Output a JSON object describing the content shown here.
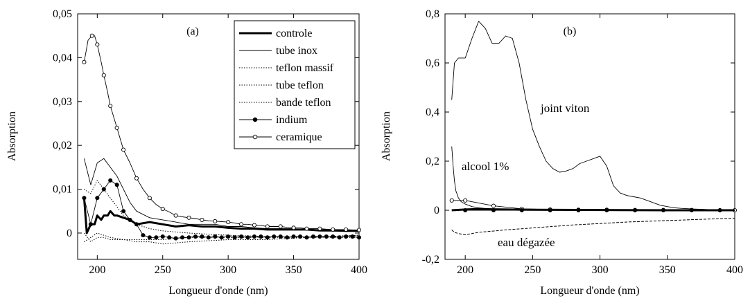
{
  "chart_data": [
    {
      "type": "line",
      "panel_label": "(a)",
      "xlabel": "Longueur d'onde (nm)",
      "ylabel": "Absorption",
      "xlim": [
        185,
        400
      ],
      "ylim": [
        -0.006,
        0.05
      ],
      "xticks": [
        200,
        250,
        300,
        350,
        400
      ],
      "xtick_labels": [
        "200",
        "250",
        "300",
        "350",
        "400"
      ],
      "yticks": [
        0,
        0.01,
        0.02,
        0.03,
        0.04,
        0.05
      ],
      "ytick_labels": [
        "0",
        "0,01",
        "0,02",
        "0,03",
        "0,04",
        "0,05"
      ],
      "legend_position": "top-right",
      "series": [
        {
          "name": "controle",
          "style": "thick",
          "x": [
            190,
            192,
            195,
            198,
            200,
            203,
            205,
            208,
            210,
            213,
            215,
            220,
            225,
            230,
            240,
            250,
            260,
            270,
            280,
            290,
            300,
            310,
            320,
            330,
            340,
            350,
            360,
            370,
            380,
            390,
            400
          ],
          "y": [
            0.008,
            0.0,
            0.002,
            0.002,
            0.004,
            0.003,
            0.004,
            0.004,
            0.005,
            0.004,
            0.004,
            0.0035,
            0.003,
            0.002,
            0.0025,
            0.002,
            0.0015,
            0.0018,
            0.0015,
            0.0015,
            0.0012,
            0.001,
            0.001,
            0.0008,
            0.0008,
            0.0008,
            0.0008,
            0.0006,
            0.0006,
            0.0005,
            0.0005
          ]
        },
        {
          "name": "tube inox",
          "style": "thin",
          "x": [
            190,
            195,
            200,
            205,
            210,
            215,
            220,
            225,
            230,
            240,
            250,
            260,
            270,
            280,
            290,
            300,
            310,
            320,
            330,
            340,
            350,
            360,
            370,
            380,
            390,
            400
          ],
          "y": [
            0.017,
            0.011,
            0.016,
            0.017,
            0.015,
            0.013,
            0.01,
            0.007,
            0.005,
            0.0035,
            0.003,
            0.0025,
            0.002,
            0.002,
            0.002,
            0.0015,
            0.0015,
            0.0012,
            0.001,
            0.001,
            0.001,
            0.0008,
            0.0008,
            0.0008,
            0.0007,
            0.0007
          ]
        },
        {
          "name": "teflon massif",
          "style": "dotted",
          "x": [
            190,
            195,
            200,
            205,
            210,
            220,
            230,
            240,
            250,
            270,
            300,
            330,
            360,
            400
          ],
          "y": [
            0.01,
            0.009,
            0.012,
            0.01,
            0.008,
            0.004,
            0.002,
            0.001,
            0.0005,
            0.0,
            -0.0005,
            -0.0008,
            -0.001,
            -0.001
          ]
        },
        {
          "name": "tube teflon",
          "style": "dotted",
          "x": [
            190,
            195,
            200,
            205,
            210,
            220,
            230,
            240,
            250,
            270,
            300,
            330,
            360,
            400
          ],
          "y": [
            0.0,
            -0.002,
            -0.001,
            -0.001,
            -0.0015,
            -0.0015,
            -0.0015,
            -0.0015,
            -0.0015,
            -0.001,
            -0.001,
            -0.001,
            -0.001,
            -0.0005
          ]
        },
        {
          "name": "bande teflon",
          "style": "dotted",
          "x": [
            190,
            195,
            200,
            205,
            210,
            220,
            230,
            240,
            250,
            270,
            300,
            330,
            360,
            400
          ],
          "y": [
            -0.002,
            -0.001,
            0.0,
            -0.0005,
            -0.001,
            -0.0015,
            -0.002,
            -0.002,
            -0.0025,
            -0.002,
            -0.0015,
            -0.0015,
            -0.001,
            -0.0005
          ]
        },
        {
          "name": "indium",
          "style": "filled-markers",
          "x": [
            190,
            195,
            200,
            205,
            210,
            215,
            220,
            225,
            230,
            235,
            240,
            245,
            250,
            255,
            260,
            265,
            270,
            275,
            280,
            285,
            290,
            295,
            300,
            305,
            310,
            315,
            320,
            325,
            330,
            335,
            340,
            345,
            350,
            355,
            360,
            365,
            370,
            375,
            380,
            385,
            390,
            395,
            400
          ],
          "y": [
            0.008,
            0.002,
            0.008,
            0.01,
            0.012,
            0.011,
            0.005,
            0.003,
            0.002,
            -0.0005,
            -0.001,
            -0.001,
            -0.0008,
            -0.001,
            -0.0012,
            -0.001,
            -0.001,
            -0.0008,
            -0.0008,
            -0.001,
            -0.0008,
            -0.001,
            -0.0008,
            -0.001,
            -0.0008,
            -0.001,
            -0.0008,
            -0.0008,
            -0.001,
            -0.0008,
            -0.0008,
            -0.001,
            -0.0008,
            -0.0008,
            -0.001,
            -0.0008,
            -0.0008,
            -0.0008,
            -0.0008,
            -0.001,
            -0.0008,
            -0.0008,
            -0.001
          ]
        },
        {
          "name": "ceramique",
          "style": "open-markers",
          "x": [
            190,
            193,
            196,
            198,
            200,
            203,
            205,
            208,
            210,
            213,
            215,
            218,
            220,
            225,
            230,
            235,
            240,
            245,
            250,
            255,
            260,
            265,
            270,
            275,
            280,
            285,
            290,
            295,
            300,
            305,
            310,
            315,
            320,
            325,
            330,
            335,
            340,
            345,
            350,
            355,
            360,
            365,
            370,
            375,
            380,
            385,
            390,
            395,
            400
          ],
          "y": [
            0.039,
            0.044,
            0.045,
            0.045,
            0.043,
            0.039,
            0.036,
            0.032,
            0.029,
            0.026,
            0.024,
            0.021,
            0.019,
            0.016,
            0.0125,
            0.01,
            0.008,
            0.0065,
            0.0055,
            0.0048,
            0.004,
            0.0037,
            0.0035,
            0.0033,
            0.003,
            0.0028,
            0.0027,
            0.0026,
            0.0025,
            0.0023,
            0.002,
            0.002,
            0.0018,
            0.0017,
            0.0015,
            0.0015,
            0.0015,
            0.0013,
            0.0012,
            0.0012,
            0.001,
            0.001,
            0.001,
            0.0009,
            0.0008,
            0.0008,
            0.0008,
            0.0007,
            0.0007
          ]
        }
      ]
    },
    {
      "type": "line",
      "panel_label": "(b)",
      "xlabel": "Longueur d'onde (nm)",
      "ylabel": "Absorption",
      "xlim": [
        185,
        400
      ],
      "ylim": [
        -0.2,
        0.8
      ],
      "xticks": [
        200,
        250,
        300,
        350,
        400
      ],
      "xtick_labels": [
        "200",
        "250",
        "300",
        "350",
        "400"
      ],
      "yticks": [
        -0.2,
        0,
        0.2,
        0.4,
        0.6,
        0.8
      ],
      "ytick_labels": [
        "-0,2",
        "0",
        "0,2",
        "0,4",
        "0,6",
        "0,8"
      ],
      "annotations": [
        "joint viton",
        "alcool 1%",
        "eau dégazée"
      ],
      "series": [
        {
          "label": "joint viton",
          "style": "thin",
          "x": [
            190,
            192,
            195,
            200,
            205,
            210,
            215,
            220,
            225,
            230,
            235,
            240,
            245,
            250,
            255,
            260,
            265,
            270,
            275,
            280,
            285,
            290,
            295,
            300,
            305,
            310,
            315,
            320,
            325,
            330,
            335,
            340,
            345,
            350,
            355,
            360,
            370,
            380,
            390,
            400
          ],
          "y": [
            0.45,
            0.6,
            0.62,
            0.62,
            0.7,
            0.77,
            0.74,
            0.68,
            0.68,
            0.71,
            0.7,
            0.6,
            0.45,
            0.33,
            0.26,
            0.2,
            0.17,
            0.155,
            0.16,
            0.17,
            0.19,
            0.2,
            0.21,
            0.22,
            0.18,
            0.1,
            0.07,
            0.06,
            0.055,
            0.05,
            0.04,
            0.03,
            0.02,
            0.015,
            0.01,
            0.008,
            0.005,
            0.003,
            0.002,
            0.002
          ]
        },
        {
          "label": "alcool 1%",
          "style": "thin",
          "x": [
            190,
            191,
            192,
            193,
            195,
            197,
            200,
            205,
            210,
            215,
            220,
            230,
            240,
            260,
            300,
            350,
            400
          ],
          "y": [
            0.26,
            0.18,
            0.12,
            0.08,
            0.05,
            0.035,
            0.025,
            0.015,
            0.01,
            0.007,
            0.005,
            0.003,
            0.002,
            0.001,
            0.0,
            0.0,
            0.0
          ]
        },
        {
          "label": "ceramique",
          "style": "open-markers",
          "x": [
            190,
            200,
            221,
            242,
            263,
            284,
            305,
            326,
            347,
            368,
            389,
            400
          ],
          "y": [
            0.04,
            0.04,
            0.018,
            0.006,
            0.003,
            0.002,
            0.002,
            0.001,
            0.001,
            0.001,
            0.0,
            0.0
          ]
        },
        {
          "label": "controle",
          "style": "thick",
          "x": [
            190,
            200,
            210,
            220,
            230,
            250,
            300,
            350,
            400
          ],
          "y": [
            0.0,
            0.003,
            0.005,
            0.004,
            0.003,
            0.002,
            0.001,
            0.0,
            0.0
          ]
        },
        {
          "label": "indium",
          "style": "filled-markers",
          "x": [
            200,
            221,
            242,
            263,
            284,
            305,
            326,
            347,
            368,
            389
          ],
          "y": [
            0.0,
            0.0,
            0.0,
            0.0,
            0.0,
            0.0,
            0.0,
            0.0,
            0.0,
            0.0
          ]
        },
        {
          "label": "eau dégazée",
          "style": "dashed",
          "x": [
            190,
            192,
            195,
            200,
            205,
            210,
            220,
            230,
            240,
            250,
            260,
            270,
            280,
            290,
            300,
            310,
            320,
            330,
            340,
            350,
            360,
            370,
            380,
            390,
            400
          ],
          "y": [
            -0.08,
            -0.09,
            -0.095,
            -0.1,
            -0.095,
            -0.09,
            -0.085,
            -0.08,
            -0.076,
            -0.072,
            -0.068,
            -0.064,
            -0.06,
            -0.057,
            -0.054,
            -0.051,
            -0.048,
            -0.046,
            -0.044,
            -0.042,
            -0.04,
            -0.038,
            -0.036,
            -0.034,
            -0.032
          ]
        }
      ]
    }
  ]
}
